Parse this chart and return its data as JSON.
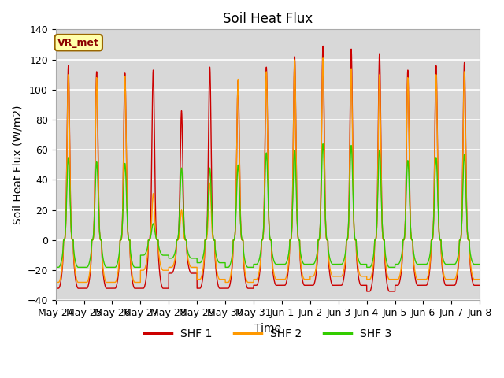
{
  "title": "Soil Heat Flux",
  "xlabel": "Time",
  "ylabel": "Soil Heat Flux (W/m2)",
  "ylim": [
    -40,
    140
  ],
  "yticks": [
    -40,
    -20,
    0,
    20,
    40,
    60,
    80,
    100,
    120,
    140
  ],
  "xtick_labels": [
    "May 24",
    "May 25",
    "May 26",
    "May 27",
    "May 28",
    "May 29",
    "May 30",
    "May 31",
    "Jun 1",
    "Jun 2",
    "Jun 3",
    "Jun 4",
    "Jun 5",
    "Jun 6",
    "Jun 7",
    "Jun 8"
  ],
  "colors": {
    "SHF 1": "#cc0000",
    "SHF 2": "#ff9900",
    "SHF 3": "#33cc00"
  },
  "legend_items": [
    "SHF 1",
    "SHF 2",
    "SHF 3"
  ],
  "annotation_text": "VR_met",
  "annotation_color": "#8b0000",
  "annotation_bg": "#ffffaa",
  "bg_color": "#d8d8d8",
  "line_width": 1.0,
  "title_fontsize": 12,
  "label_fontsize": 10,
  "tick_fontsize": 9,
  "grid_color": "white",
  "days": 15,
  "points_per_day": 288,
  "shf1_peaks": [
    116,
    112,
    111,
    113,
    86,
    115,
    106,
    115,
    122,
    129,
    127,
    124,
    113,
    116,
    118
  ],
  "shf2_peaks": [
    110,
    108,
    109,
    31,
    20,
    38,
    107,
    112,
    120,
    121,
    114,
    110,
    108,
    110,
    112
  ],
  "shf3_peaks": [
    55,
    52,
    51,
    11,
    48,
    48,
    50,
    58,
    60,
    64,
    63,
    60,
    53,
    55,
    57
  ],
  "shf1_nights": [
    -32,
    -32,
    -32,
    -32,
    -22,
    -32,
    -32,
    -30,
    -30,
    -30,
    -30,
    -34,
    -30,
    -30,
    -30
  ],
  "shf2_nights": [
    -28,
    -28,
    -28,
    -20,
    -18,
    -26,
    -28,
    -26,
    -26,
    -24,
    -24,
    -26,
    -26,
    -26,
    -26
  ],
  "shf3_nights": [
    -18,
    -18,
    -18,
    -10,
    -12,
    -15,
    -18,
    -16,
    -16,
    -16,
    -16,
    -18,
    -16,
    -16,
    -16
  ],
  "peak_sharpness": 6.0,
  "night_sharpness": 0.5
}
